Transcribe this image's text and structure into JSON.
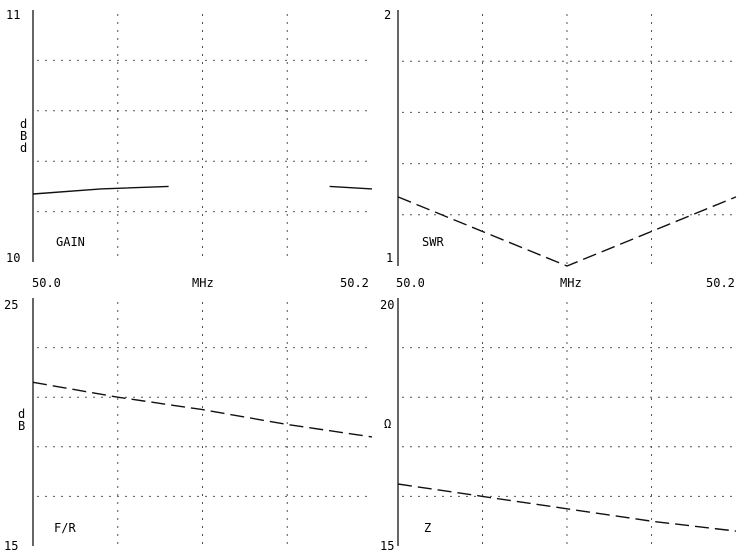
{
  "chart_data": [
    {
      "type": "line",
      "name_label": "GAIN",
      "ylabel": "dBd",
      "xlabel": "MHz",
      "x_tick_left": "50.0",
      "x_tick_right": "50.2",
      "y_tick_top": "11",
      "y_tick_bottom": "10",
      "xlim": [
        50.0,
        50.2
      ],
      "ylim": [
        10,
        11
      ],
      "grid": true,
      "dash": "14 0",
      "segments": [
        {
          "x": [
            50.0,
            50.04,
            50.08
          ],
          "y": [
            10.27,
            10.29,
            10.3
          ]
        },
        {
          "x": [
            50.175,
            50.2
          ],
          "y": [
            10.3,
            10.29
          ]
        }
      ]
    },
    {
      "type": "line",
      "name_label": "SWR",
      "ylabel": "",
      "xlabel": "MHz",
      "x_tick_left": "50.0",
      "x_tick_right": "50.2",
      "y_tick_top": "2",
      "y_tick_bottom": "1",
      "xlim": [
        50.0,
        50.2
      ],
      "ylim": [
        1,
        2
      ],
      "grid": true,
      "dash": "14 6",
      "segments": [
        {
          "x": [
            50.0,
            50.1,
            50.2
          ],
          "y": [
            1.27,
            1.0,
            1.27
          ]
        }
      ]
    },
    {
      "type": "line",
      "name_label": "F/R",
      "ylabel": "dB",
      "xlabel": "",
      "x_tick_left": "",
      "x_tick_right": "",
      "y_tick_top": "25",
      "y_tick_bottom": "15",
      "xlim": [
        50.0,
        50.2
      ],
      "ylim": [
        15,
        25
      ],
      "grid": true,
      "dash": "14 6",
      "segments": [
        {
          "x": [
            50.0,
            50.05,
            50.1,
            50.15,
            50.2
          ],
          "y": [
            21.6,
            21.0,
            20.5,
            19.9,
            19.4
          ]
        }
      ]
    },
    {
      "type": "line",
      "name_label": "Z",
      "ylabel": "Ω",
      "xlabel": "",
      "x_tick_left": "",
      "x_tick_right": "",
      "y_tick_top": "20",
      "y_tick_bottom": "15",
      "xlim": [
        50.0,
        50.2
      ],
      "ylim": [
        15,
        20
      ],
      "grid": true,
      "dash": "14 6",
      "segments": [
        {
          "x": [
            50.0,
            50.05,
            50.1,
            50.15,
            50.2
          ],
          "y": [
            16.25,
            16.0,
            15.75,
            15.5,
            15.3
          ]
        }
      ]
    }
  ]
}
